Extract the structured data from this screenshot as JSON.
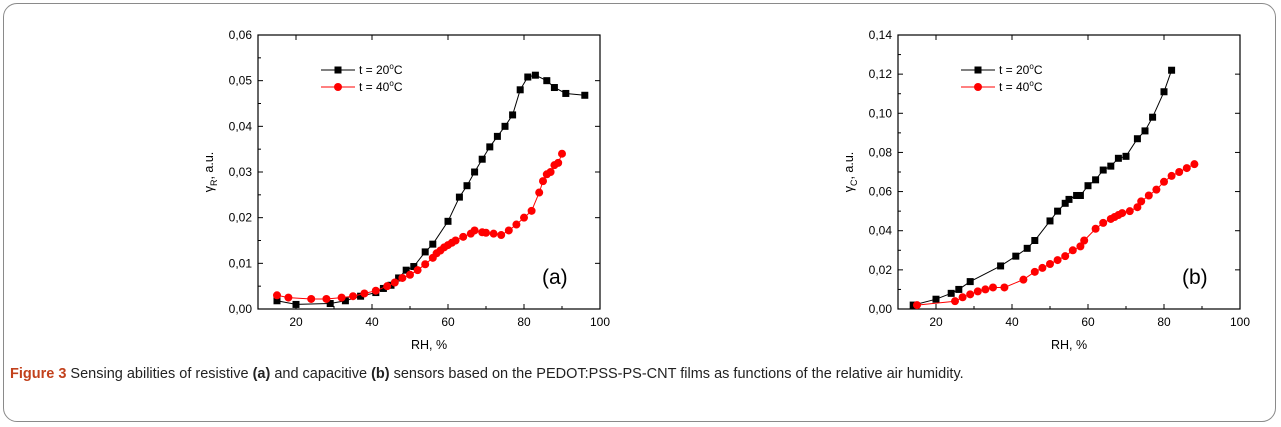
{
  "chart_data": [
    {
      "type": "line",
      "panel_label": "(a)",
      "xlabel": "RH, %",
      "ylabel_main": "γ",
      "ylabel_sub": "R",
      "ylabel_rest": ", a.u.",
      "xlim": [
        10,
        100
      ],
      "ylim": [
        0,
        0.06
      ],
      "xticks": [
        "20",
        "40",
        "60",
        "80",
        "100"
      ],
      "xtick_values": [
        20,
        40,
        60,
        80,
        100
      ],
      "yticks": [
        "0,00",
        "0,01",
        "0,02",
        "0,03",
        "0,04",
        "0,05",
        "0,06"
      ],
      "ytick_values": [
        0,
        0.01,
        0.02,
        0.03,
        0.04,
        0.05,
        0.06
      ],
      "legend_position": "top-left",
      "series": [
        {
          "name": "t = 20°C",
          "name_prefix": "t = 20",
          "name_unit": "C",
          "color": "#000000",
          "marker": "square",
          "x": [
            15,
            20,
            29,
            33,
            37,
            41,
            43,
            45,
            47,
            49,
            51,
            54,
            56,
            60,
            63,
            65,
            67,
            69,
            71,
            73,
            75,
            77,
            79,
            81,
            83,
            86,
            88,
            91,
            96
          ],
          "y": [
            0.0018,
            0.001,
            0.0012,
            0.0018,
            0.0028,
            0.0036,
            0.0045,
            0.0052,
            0.0068,
            0.0085,
            0.0093,
            0.0125,
            0.0142,
            0.0192,
            0.0245,
            0.027,
            0.03,
            0.0328,
            0.0355,
            0.0378,
            0.04,
            0.0425,
            0.048,
            0.0508,
            0.0512,
            0.05,
            0.0485,
            0.0472,
            0.0468
          ]
        },
        {
          "name": "t = 40°C",
          "name_prefix": "t = 40",
          "name_unit": "C",
          "color": "#ff0000",
          "marker": "circle",
          "x": [
            15,
            18,
            24,
            28,
            32,
            35,
            38,
            41,
            44,
            46,
            48,
            50,
            52,
            54,
            56,
            57,
            58,
            59,
            60,
            61,
            62,
            64,
            66,
            67,
            69,
            70,
            72,
            74,
            76,
            78,
            80,
            82,
            84,
            85,
            86,
            87,
            88,
            89,
            90
          ],
          "y": [
            0.003,
            0.0025,
            0.0022,
            0.0022,
            0.0025,
            0.0028,
            0.0034,
            0.004,
            0.005,
            0.0058,
            0.0068,
            0.0075,
            0.0085,
            0.0098,
            0.0112,
            0.0122,
            0.0128,
            0.0135,
            0.014,
            0.0145,
            0.015,
            0.0158,
            0.0165,
            0.0172,
            0.0168,
            0.0167,
            0.0165,
            0.0162,
            0.0172,
            0.0185,
            0.02,
            0.0215,
            0.0255,
            0.028,
            0.0295,
            0.03,
            0.0315,
            0.032,
            0.034
          ]
        }
      ]
    },
    {
      "type": "line",
      "panel_label": "(b)",
      "xlabel": "RH, %",
      "ylabel_main": "γ",
      "ylabel_sub": "C",
      "ylabel_rest": ", a.u.",
      "xlim": [
        10,
        100
      ],
      "ylim": [
        0,
        0.14
      ],
      "xticks": [
        "20",
        "40",
        "60",
        "80",
        "100"
      ],
      "xtick_values": [
        20,
        40,
        60,
        80,
        100
      ],
      "yticks": [
        "0,00",
        "0,02",
        "0,04",
        "0,06",
        "0,08",
        "0,10",
        "0,12",
        "0,14"
      ],
      "ytick_values": [
        0,
        0.02,
        0.04,
        0.06,
        0.08,
        0.1,
        0.12,
        0.14
      ],
      "legend_position": "top-left",
      "series": [
        {
          "name": "t = 20°C",
          "name_prefix": "t = 20",
          "name_unit": "C",
          "color": "#000000",
          "marker": "square",
          "x": [
            14,
            20,
            24,
            26,
            29,
            37,
            41,
            44,
            46,
            50,
            52,
            54,
            55,
            57,
            58,
            60,
            62,
            64,
            66,
            68,
            70,
            73,
            75,
            77,
            80,
            82
          ],
          "y": [
            0.002,
            0.005,
            0.008,
            0.01,
            0.014,
            0.022,
            0.027,
            0.031,
            0.035,
            0.045,
            0.05,
            0.054,
            0.056,
            0.058,
            0.058,
            0.063,
            0.066,
            0.071,
            0.073,
            0.077,
            0.078,
            0.087,
            0.091,
            0.098,
            0.111,
            0.122
          ]
        },
        {
          "name": "t = 40°C",
          "name_prefix": "t = 40",
          "name_unit": "C",
          "color": "#ff0000",
          "marker": "circle",
          "x": [
            15,
            25,
            27,
            29,
            31,
            33,
            35,
            38,
            43,
            46,
            48,
            50,
            52,
            54,
            56,
            58,
            59,
            62,
            64,
            66,
            67,
            68,
            69,
            71,
            73,
            74,
            76,
            78,
            80,
            82,
            84,
            86,
            88
          ],
          "y": [
            0.002,
            0.004,
            0.006,
            0.0075,
            0.009,
            0.01,
            0.011,
            0.011,
            0.015,
            0.019,
            0.021,
            0.023,
            0.025,
            0.027,
            0.03,
            0.032,
            0.035,
            0.041,
            0.044,
            0.046,
            0.047,
            0.048,
            0.049,
            0.05,
            0.052,
            0.055,
            0.058,
            0.061,
            0.065,
            0.068,
            0.07,
            0.072,
            0.074
          ]
        }
      ]
    }
  ],
  "caption": {
    "lead": "Figure 3",
    "text1": " Sensing abilities of resistive ",
    "a": "(a)",
    "text2": " and capacitive ",
    "b": "(b)",
    "text3": " sensors based on the PEDOT:PSS-PS-CNT films as functions of the relative air humidity."
  }
}
